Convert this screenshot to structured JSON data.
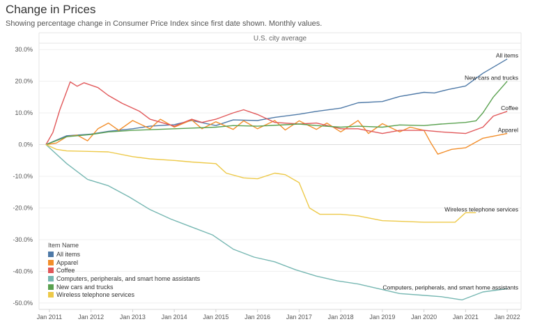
{
  "header": {
    "title": "Change in Prices",
    "subtitle": "Showing percentage change in Consumer Price Index since first date shown. Monthly values."
  },
  "chart_data": {
    "type": "line",
    "panel_title": "U.S. city average",
    "x_ticks": [
      "Jan 2011",
      "Jan 2012",
      "Jan 2013",
      "Jan 2014",
      "Jan 2015",
      "Jan 2016",
      "Jan 2017",
      "Jan 2018",
      "Jan 2019",
      "Jan 2020",
      "Jan 2021",
      "Jan 2022"
    ],
    "x_range": [
      "2010-10",
      "2022-05"
    ],
    "ylim": [
      -52,
      32
    ],
    "y_ticks": [
      "30.0%",
      "20.0%",
      "10.0%",
      "0.0%",
      "-10.0%",
      "-20.0%",
      "-30.0%",
      "-40.0%",
      "-50.0%"
    ],
    "y_tick_values": [
      30,
      20,
      10,
      0,
      -10,
      -20,
      -30,
      -40,
      -50
    ],
    "grid": "horizontal",
    "legend": {
      "title": "Item Name",
      "position": "bottom-left",
      "items": [
        "All items",
        "Apparel",
        "Coffee",
        "Computers, peripherals, and smart home assistants",
        "New cars and trucks",
        "Wireless telephone services"
      ]
    },
    "series": [
      {
        "name": "All items",
        "color": "#4e79a7",
        "end_label": "All items",
        "points": [
          [
            "2010-12",
            0
          ],
          [
            "2011-06",
            2.8
          ],
          [
            "2012-01",
            3.3
          ],
          [
            "2012-06",
            4.2
          ],
          [
            "2013-01",
            5.0
          ],
          [
            "2013-06",
            5.8
          ],
          [
            "2014-01",
            6.3
          ],
          [
            "2014-06",
            7.6
          ],
          [
            "2015-01",
            6.0
          ],
          [
            "2015-06",
            7.8
          ],
          [
            "2016-01",
            7.6
          ],
          [
            "2016-06",
            8.6
          ],
          [
            "2017-01",
            9.6
          ],
          [
            "2017-06",
            10.5
          ],
          [
            "2018-01",
            11.5
          ],
          [
            "2018-06",
            13.2
          ],
          [
            "2019-01",
            13.6
          ],
          [
            "2019-06",
            15.2
          ],
          [
            "2020-01",
            16.5
          ],
          [
            "2020-04",
            16.3
          ],
          [
            "2020-08",
            17.4
          ],
          [
            "2021-01",
            18.5
          ],
          [
            "2021-06",
            22.5
          ],
          [
            "2022-01",
            27.0
          ]
        ]
      },
      {
        "name": "Apparel",
        "color": "#f28e2b",
        "end_label": "Apparel",
        "points": [
          [
            "2010-12",
            0
          ],
          [
            "2011-03",
            0.5
          ],
          [
            "2011-06",
            2.5
          ],
          [
            "2011-09",
            3.0
          ],
          [
            "2011-12",
            1.2
          ],
          [
            "2012-03",
            5.0
          ],
          [
            "2012-06",
            6.8
          ],
          [
            "2012-09",
            4.5
          ],
          [
            "2013-01",
            7.6
          ],
          [
            "2013-06",
            5.0
          ],
          [
            "2013-09",
            8.0
          ],
          [
            "2014-01",
            5.5
          ],
          [
            "2014-06",
            7.8
          ],
          [
            "2014-09",
            5.0
          ],
          [
            "2015-01",
            7.2
          ],
          [
            "2015-06",
            4.8
          ],
          [
            "2015-09",
            7.5
          ],
          [
            "2016-01",
            5.0
          ],
          [
            "2016-06",
            7.6
          ],
          [
            "2016-09",
            4.6
          ],
          [
            "2017-01",
            7.5
          ],
          [
            "2017-06",
            4.8
          ],
          [
            "2017-09",
            6.8
          ],
          [
            "2018-01",
            4.0
          ],
          [
            "2018-06",
            7.6
          ],
          [
            "2018-09",
            3.5
          ],
          [
            "2019-01",
            6.6
          ],
          [
            "2019-06",
            4.0
          ],
          [
            "2019-09",
            5.5
          ],
          [
            "2020-01",
            4.5
          ],
          [
            "2020-03",
            0.5
          ],
          [
            "2020-05",
            -3.0
          ],
          [
            "2020-09",
            -1.5
          ],
          [
            "2021-01",
            -1.0
          ],
          [
            "2021-06",
            2.0
          ],
          [
            "2022-01",
            3.5
          ]
        ]
      },
      {
        "name": "Coffee",
        "color": "#e15759",
        "end_label": "Coffee",
        "points": [
          [
            "2010-12",
            0
          ],
          [
            "2011-02",
            3.8
          ],
          [
            "2011-04",
            11.0
          ],
          [
            "2011-07",
            19.8
          ],
          [
            "2011-09",
            18.4
          ],
          [
            "2011-11",
            19.5
          ],
          [
            "2012-03",
            18.0
          ],
          [
            "2012-06",
            15.5
          ],
          [
            "2012-10",
            13.0
          ],
          [
            "2013-03",
            10.5
          ],
          [
            "2013-06",
            8.0
          ],
          [
            "2014-01",
            5.8
          ],
          [
            "2014-06",
            8.0
          ],
          [
            "2014-09",
            7.0
          ],
          [
            "2015-01",
            8.0
          ],
          [
            "2015-06",
            10.0
          ],
          [
            "2015-09",
            11.0
          ],
          [
            "2016-01",
            9.5
          ],
          [
            "2016-06",
            7.0
          ],
          [
            "2017-01",
            6.5
          ],
          [
            "2017-06",
            6.8
          ],
          [
            "2018-01",
            5.0
          ],
          [
            "2018-06",
            5.0
          ],
          [
            "2019-01",
            3.5
          ],
          [
            "2019-06",
            4.5
          ],
          [
            "2020-01",
            4.5
          ],
          [
            "2020-06",
            4.0
          ],
          [
            "2021-01",
            3.5
          ],
          [
            "2021-06",
            5.5
          ],
          [
            "2021-09",
            9.0
          ],
          [
            "2022-01",
            10.5
          ]
        ]
      },
      {
        "name": "Computers, peripherals, and smart home assistants",
        "color": "#76b7b2",
        "end_label": "Computers, peripherals, and smart home assistants",
        "points": [
          [
            "2010-12",
            0
          ],
          [
            "2011-06",
            -6.0
          ],
          [
            "2011-12",
            -11.0
          ],
          [
            "2012-06",
            -13.0
          ],
          [
            "2012-12",
            -16.5
          ],
          [
            "2013-06",
            -20.5
          ],
          [
            "2013-12",
            -23.5
          ],
          [
            "2014-06",
            -26.0
          ],
          [
            "2014-12",
            -28.5
          ],
          [
            "2015-06",
            -33.0
          ],
          [
            "2015-12",
            -35.5
          ],
          [
            "2016-06",
            -37.0
          ],
          [
            "2016-12",
            -39.5
          ],
          [
            "2017-06",
            -41.5
          ],
          [
            "2017-12",
            -43.0
          ],
          [
            "2018-06",
            -44.0
          ],
          [
            "2018-12",
            -45.5
          ],
          [
            "2019-06",
            -47.0
          ],
          [
            "2019-12",
            -47.5
          ],
          [
            "2020-06",
            -48.0
          ],
          [
            "2020-12",
            -49.0
          ],
          [
            "2021-06",
            -46.5
          ],
          [
            "2022-01",
            -45.5
          ]
        ]
      },
      {
        "name": "New cars and trucks",
        "color": "#59a14f",
        "end_label": "New cars and trucks",
        "points": [
          [
            "2010-12",
            0
          ],
          [
            "2011-06",
            2.5
          ],
          [
            "2012-01",
            3.2
          ],
          [
            "2012-06",
            4.0
          ],
          [
            "2013-01",
            4.5
          ],
          [
            "2014-01",
            5.0
          ],
          [
            "2015-01",
            5.5
          ],
          [
            "2015-06",
            6.0
          ],
          [
            "2016-01",
            5.8
          ],
          [
            "2017-01",
            6.5
          ],
          [
            "2017-06",
            6.0
          ],
          [
            "2018-01",
            5.5
          ],
          [
            "2018-06",
            5.8
          ],
          [
            "2019-01",
            5.5
          ],
          [
            "2019-06",
            6.2
          ],
          [
            "2020-01",
            6.0
          ],
          [
            "2020-06",
            6.5
          ],
          [
            "2021-01",
            7.0
          ],
          [
            "2021-04",
            7.5
          ],
          [
            "2021-06",
            10.0
          ],
          [
            "2021-09",
            15.0
          ],
          [
            "2022-01",
            20.0
          ]
        ]
      },
      {
        "name": "Wireless telephone services",
        "color": "#edc948",
        "end_label": "Wireless telephone services",
        "points": [
          [
            "2010-12",
            0
          ],
          [
            "2011-03",
            -1.5
          ],
          [
            "2011-06",
            -2.0
          ],
          [
            "2012-06",
            -2.3
          ],
          [
            "2013-01",
            -3.8
          ],
          [
            "2013-06",
            -4.5
          ],
          [
            "2014-01",
            -5.0
          ],
          [
            "2014-06",
            -5.5
          ],
          [
            "2015-01",
            -6.0
          ],
          [
            "2015-04",
            -9.0
          ],
          [
            "2015-09",
            -10.5
          ],
          [
            "2016-01",
            -10.8
          ],
          [
            "2016-06",
            -9.0
          ],
          [
            "2016-09",
            -9.5
          ],
          [
            "2017-01",
            -12.0
          ],
          [
            "2017-04",
            -20.0
          ],
          [
            "2017-07",
            -22.0
          ],
          [
            "2018-01",
            -22.0
          ],
          [
            "2018-06",
            -22.5
          ],
          [
            "2019-01",
            -24.0
          ],
          [
            "2019-06",
            -24.2
          ],
          [
            "2020-01",
            -24.5
          ],
          [
            "2020-10",
            -24.5
          ],
          [
            "2021-01",
            -21.5
          ],
          [
            "2021-04",
            -21.5
          ]
        ]
      }
    ]
  }
}
